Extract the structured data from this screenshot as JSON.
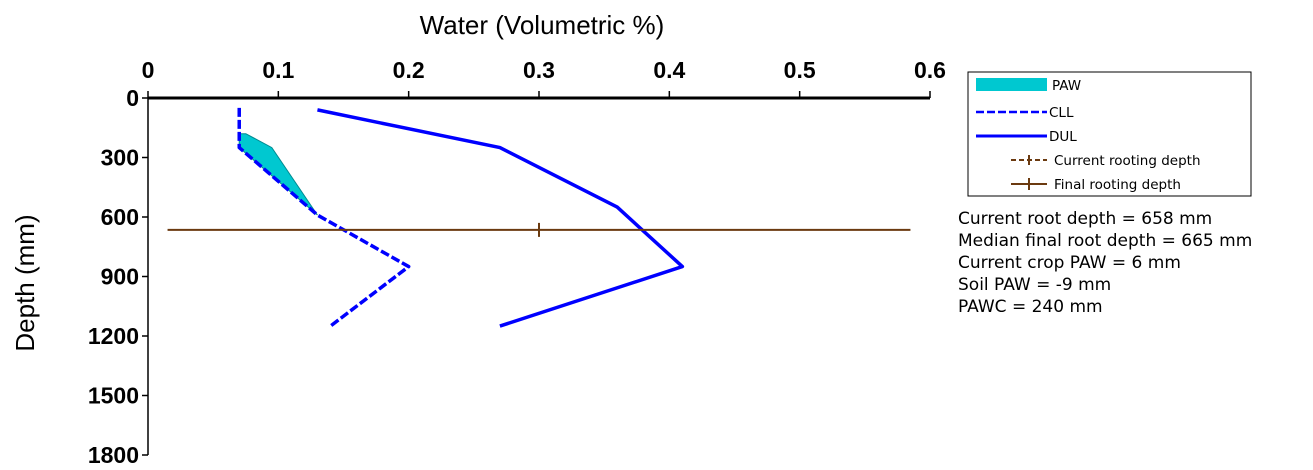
{
  "chart_data": {
    "type": "line",
    "title": "",
    "xlabel": "Water (Volumetric %)",
    "ylabel": "Depth (mm)",
    "xlim": [
      0,
      0.6
    ],
    "ylim": [
      0,
      1800
    ],
    "x_ticks": [
      "0",
      "0.1",
      "0.2",
      "0.3",
      "0.4",
      "0.5",
      "0.6"
    ],
    "y_ticks": [
      "0",
      "300",
      "600",
      "900",
      "1200",
      "1500",
      "1800"
    ],
    "x_axis_position": "top",
    "y_axis_inverted": true,
    "grid": false,
    "legend_placement": "right",
    "colors": {
      "paw_fill": "#00c8d0",
      "paw_edge": "#008a90",
      "cll": "#0000ff",
      "dul": "#0000ff",
      "rooting": "#6b3a10"
    },
    "series": [
      {
        "name": "CLL",
        "style": "dashed",
        "points": [
          {
            "x": 0.07,
            "y": 50
          },
          {
            "x": 0.07,
            "y": 250
          },
          {
            "x": 0.13,
            "y": 590
          },
          {
            "x": 0.2,
            "y": 850
          },
          {
            "x": 0.14,
            "y": 1150
          }
        ]
      },
      {
        "name": "DUL",
        "style": "solid",
        "points": [
          {
            "x": 0.13,
            "y": 60
          },
          {
            "x": 0.27,
            "y": 250
          },
          {
            "x": 0.36,
            "y": 550
          },
          {
            "x": 0.41,
            "y": 850
          },
          {
            "x": 0.27,
            "y": 1150
          }
        ]
      },
      {
        "name": "PAW",
        "style": "fill",
        "upper": [
          {
            "x": 0.075,
            "y": 180
          },
          {
            "x": 0.095,
            "y": 250
          },
          {
            "x": 0.13,
            "y": 590
          }
        ],
        "lower": [
          {
            "x": 0.07,
            "y": 180
          },
          {
            "x": 0.07,
            "y": 250
          },
          {
            "x": 0.13,
            "y": 590
          }
        ]
      },
      {
        "name": "Current rooting depth",
        "style": "dashed-marker",
        "points": []
      },
      {
        "name": "Final rooting depth",
        "style": "solid-marker",
        "points": [
          {
            "x": 0.015,
            "y": 665
          },
          {
            "x": 0.585,
            "y": 665
          }
        ],
        "marker_x": 0.3
      }
    ]
  },
  "legend": [
    {
      "key": "paw",
      "label": "PAW"
    },
    {
      "key": "cll",
      "label": "CLL"
    },
    {
      "key": "dul",
      "label": "DUL"
    },
    {
      "key": "current",
      "label": "Current rooting depth"
    },
    {
      "key": "final",
      "label": "Final rooting depth"
    }
  ],
  "stats": {
    "current_root_depth": "Current root depth = 658 mm",
    "median_final_root_depth": "Median final root depth = 665 mm",
    "current_crop_paw": "Current crop PAW = 6 mm",
    "soil_paw": "Soil PAW = -9 mm",
    "pawc": "PAWC = 240 mm"
  }
}
